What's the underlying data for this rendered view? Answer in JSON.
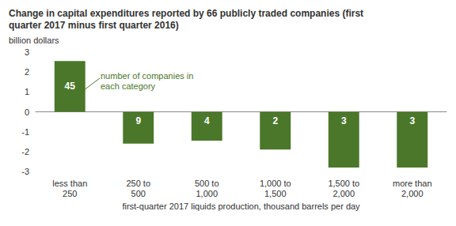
{
  "chart_data": {
    "type": "bar",
    "title": "Change in capital expenditures reported by 66 publicly traded companies (first quarter 2017 minus first quarter 2016)",
    "subtitle": "billion dollars",
    "x_label": "first-quarter 2017 liquids production, thousand barrels per day",
    "annotation": "number of companies in each category",
    "categories": [
      "less than 250",
      "250 to 500",
      "500 to 1,000",
      "1,000 to 1,500",
      "1,500 to 2,000",
      "more than 2,000"
    ],
    "values": [
      2.55,
      -1.6,
      -1.45,
      -1.9,
      -2.8,
      -2.8
    ],
    "counts": [
      45,
      9,
      4,
      2,
      3,
      3
    ],
    "color": "#4a7729",
    "ylim": [
      -3,
      3
    ],
    "yticks": [
      -3,
      -2,
      -1,
      0,
      1,
      2,
      3
    ],
    "grid": false
  }
}
